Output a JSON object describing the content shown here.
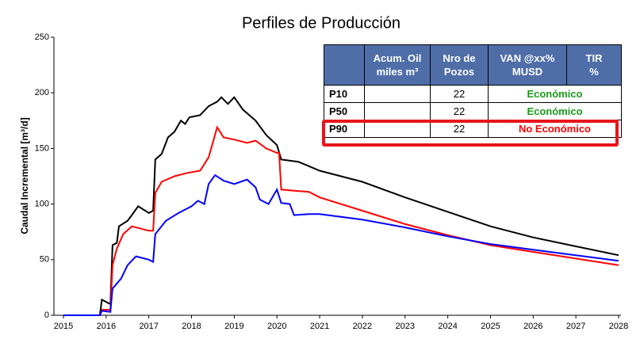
{
  "chart_data": {
    "type": "line",
    "title": "Perfiles de Producción",
    "y_label": "Caudal Incremental [m³/d]",
    "xlim": [
      2015,
      2028
    ],
    "xticks": [
      2015,
      2016,
      2017,
      2018,
      2019,
      2020,
      2021,
      2022,
      2023,
      2024,
      2025,
      2026,
      2027,
      2028
    ],
    "ylim": [
      0,
      250
    ],
    "yticks": [
      0,
      50,
      100,
      150,
      200,
      250
    ],
    "series": [
      {
        "color": "#000000",
        "x": [
          2015,
          2015.85,
          2015.9,
          2016.1,
          2016.15,
          2016.25,
          2016.3,
          2016.5,
          2016.6,
          2016.75,
          2017.0,
          2017.1,
          2017.15,
          2017.3,
          2017.45,
          2017.6,
          2017.75,
          2017.85,
          2017.95,
          2018.2,
          2018.4,
          2018.6,
          2018.7,
          2018.85,
          2019.0,
          2019.2,
          2019.5,
          2019.75,
          2020.0,
          2020.1,
          2020.5,
          2021,
          2022,
          2023,
          2024,
          2025,
          2026,
          2027,
          2028
        ],
        "values": [
          0,
          0,
          14,
          10,
          63,
          65,
          80,
          85,
          90,
          98,
          92,
          94,
          140,
          145,
          160,
          165,
          175,
          172,
          178,
          180,
          188,
          192,
          196,
          190,
          196,
          185,
          175,
          162,
          153,
          140,
          138,
          130,
          120,
          106,
          93,
          80,
          70,
          62,
          54
        ]
      },
      {
        "color": "#ff0000",
        "x": [
          2015,
          2015.85,
          2015.9,
          2016.1,
          2016.15,
          2016.25,
          2016.4,
          2016.6,
          2017.0,
          2017.1,
          2017.15,
          2017.3,
          2017.6,
          2017.9,
          2018.2,
          2018.4,
          2018.6,
          2018.75,
          2019.0,
          2019.3,
          2019.5,
          2019.75,
          2020.0,
          2020.05,
          2020.1,
          2020.4,
          2020.75,
          2021,
          2022,
          2023,
          2024,
          2025,
          2026,
          2027,
          2028
        ],
        "values": [
          0,
          0,
          5,
          5,
          45,
          60,
          73,
          80,
          76,
          76,
          110,
          120,
          125,
          128,
          130,
          142,
          169,
          160,
          158,
          155,
          157,
          150,
          146,
          146,
          113,
          112,
          111,
          106,
          94,
          82,
          72,
          63,
          57,
          51,
          45
        ]
      },
      {
        "color": "#0000ff",
        "x": [
          2015,
          2015.85,
          2015.9,
          2016.1,
          2016.15,
          2016.35,
          2016.5,
          2016.7,
          2017.0,
          2017.1,
          2017.15,
          2017.4,
          2017.7,
          2018.0,
          2018.15,
          2018.3,
          2018.4,
          2018.55,
          2018.75,
          2019.0,
          2019.3,
          2019.5,
          2019.6,
          2019.8,
          2020.0,
          2020.1,
          2020.3,
          2020.4,
          2020.75,
          2021,
          2022,
          2023,
          2024,
          2025,
          2026,
          2027,
          2028
        ],
        "values": [
          0,
          0,
          4,
          3,
          24,
          33,
          45,
          53,
          50,
          48,
          73,
          85,
          92,
          98,
          103,
          100,
          118,
          126,
          121,
          118,
          122,
          115,
          104,
          100,
          113,
          101,
          100,
          90,
          91,
          91,
          86,
          79,
          71,
          64,
          59,
          54,
          49
        ]
      }
    ]
  },
  "table": {
    "header": [
      [
        "Acum. Oil",
        "miles m³"
      ],
      [
        "Nro de",
        "Pozos"
      ],
      [
        "VAN @xx%",
        "MUSD"
      ],
      [
        "TIR",
        "%"
      ]
    ],
    "rows": [
      {
        "name": "P10",
        "wells": "22",
        "status": "Económico",
        "color": "#1a9c1a"
      },
      {
        "name": "P50",
        "wells": "22",
        "status": "Económico",
        "color": "#1a9c1a"
      },
      {
        "name": "P90",
        "wells": "22",
        "status": "No Económico",
        "color": "#ff0000"
      }
    ]
  }
}
